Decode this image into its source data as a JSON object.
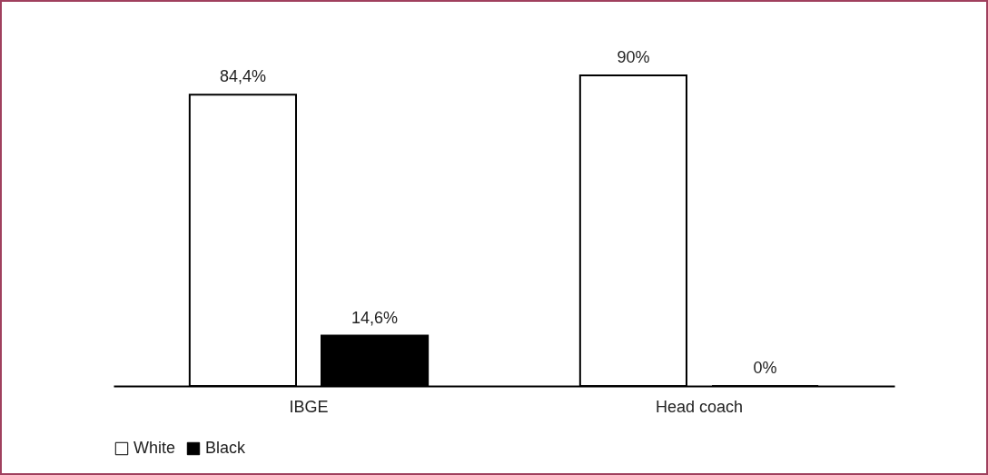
{
  "chart_data": {
    "type": "bar",
    "categories": [
      "IBGE",
      "Head coach"
    ],
    "series": [
      {
        "name": "White",
        "color": "#ffffff",
        "values": [
          84.4,
          90
        ],
        "value_labels": [
          "84,4%",
          "90%"
        ]
      },
      {
        "name": "Black",
        "color": "#000000",
        "values": [
          14.6,
          0
        ],
        "value_labels": [
          "14,6%",
          "0%"
        ]
      }
    ],
    "legend": "bottom",
    "grid": false
  }
}
